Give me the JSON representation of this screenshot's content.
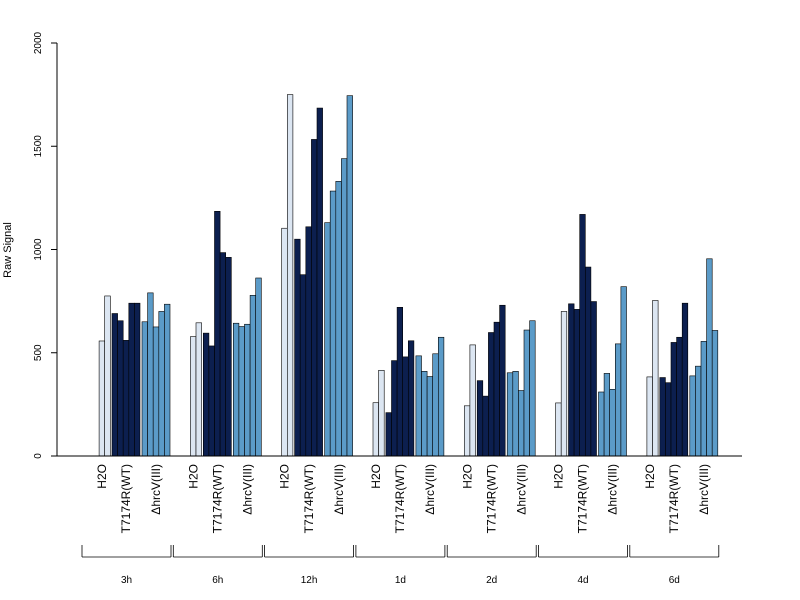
{
  "chart_data": {
    "type": "bar",
    "ylabel": "Raw Signal",
    "ylim": [
      0,
      2000
    ],
    "yticks": [
      0,
      500,
      1000,
      1500,
      2000
    ],
    "grid": false,
    "legend": "none",
    "series": [
      {
        "name": "H2O",
        "color": "#dce6f2"
      },
      {
        "name": "T7174R(WT)",
        "color": "#0c1f4f"
      },
      {
        "name": "ΔhrcV(III)",
        "color": "#5b9bc8"
      }
    ],
    "groups": [
      {
        "label": "3h",
        "values": [
          [
            0,
            557,
            775
          ],
          [
            690,
            655,
            560,
            740,
            740
          ],
          [
            650,
            790,
            625,
            700,
            735
          ]
        ]
      },
      {
        "label": "6h",
        "values": [
          [
            0,
            578,
            645
          ],
          [
            595,
            533,
            1185,
            985,
            962
          ],
          [
            643,
            627,
            638,
            778,
            862
          ]
        ]
      },
      {
        "label": "12h",
        "values": [
          [
            0,
            1103,
            1750
          ],
          [
            1050,
            878,
            1110,
            1533,
            1685
          ],
          [
            1130,
            1283,
            1330,
            1440,
            1745
          ]
        ]
      },
      {
        "label": "1d",
        "values": [
          [
            0,
            258,
            415
          ],
          [
            210,
            462,
            720,
            480,
            558
          ],
          [
            485,
            410,
            385,
            495,
            575
          ]
        ]
      },
      {
        "label": "2d",
        "values": [
          [
            0,
            243,
            538
          ],
          [
            365,
            290,
            598,
            648,
            730
          ],
          [
            403,
            410,
            317,
            610,
            655
          ]
        ]
      },
      {
        "label": "4d",
        "values": [
          [
            0,
            257,
            700
          ],
          [
            737,
            710,
            1170,
            915,
            748
          ],
          [
            310,
            400,
            323,
            543,
            820
          ]
        ]
      },
      {
        "label": "6d",
        "values": [
          [
            0,
            383,
            753
          ],
          [
            380,
            355,
            550,
            575,
            740
          ],
          [
            388,
            435,
            555,
            955,
            608
          ]
        ]
      }
    ]
  }
}
